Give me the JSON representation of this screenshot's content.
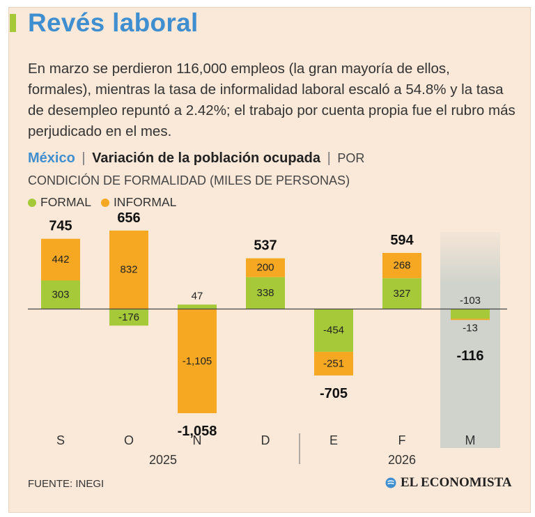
{
  "header": {
    "title": "Revés laboral",
    "intro": "En marzo se perdieron 116,000 empleos (la gran mayoría de ellos, formales), mientras la tasa de informalidad laboral escaló a 54.8% y la tasa de desempleo repuntó a 2.42%; el trabajo por cuenta propia fue el rubro más perjudicado en el mes."
  },
  "subtitle": {
    "country": "México",
    "separator": "|",
    "metric": "Variación de la población ocupada",
    "unit_line1": "POR",
    "unit_line2": "CONDICIÓN DE FORMALIDAD (MILES DE PERSONAS)"
  },
  "legend": {
    "formal": "FORMAL",
    "informal": "INFORMAL"
  },
  "colors": {
    "formal": "#a6c93a",
    "informal": "#f7a823",
    "highlight": "#cfd3cc",
    "title": "#3f8fd0",
    "background": "#fae8d8"
  },
  "chart_data": {
    "type": "bar",
    "stacked": true,
    "categories": [
      "S",
      "O",
      "N",
      "D",
      "E",
      "F",
      "M"
    ],
    "series": [
      {
        "name": "FORMAL",
        "values": [
          303,
          -176,
          47,
          338,
          -454,
          327,
          -103
        ]
      },
      {
        "name": "INFORMAL",
        "values": [
          442,
          832,
          -1105,
          200,
          -251,
          268,
          -13
        ]
      }
    ],
    "value_labels": {
      "formal": [
        "303",
        "-176",
        "47",
        "338",
        "-454",
        "327",
        "-103"
      ],
      "informal": [
        "442",
        "832",
        "-1,105",
        "200",
        "-251",
        "268",
        "-13"
      ]
    },
    "totals": [
      745,
      656,
      -1058,
      537,
      -705,
      594,
      -116
    ],
    "total_labels": [
      "745",
      "656",
      "-1,058",
      "537",
      "-705",
      "594",
      "-116"
    ],
    "years": [
      "2025",
      "2026"
    ],
    "highlighted_category": "M",
    "title": "Variación de la población ocupada",
    "ylabel": "Miles de personas",
    "ylim": [
      -1200,
      900
    ]
  },
  "footer": {
    "source": "FUENTE: INEGI",
    "brand": "EL ECONOMISTA"
  }
}
